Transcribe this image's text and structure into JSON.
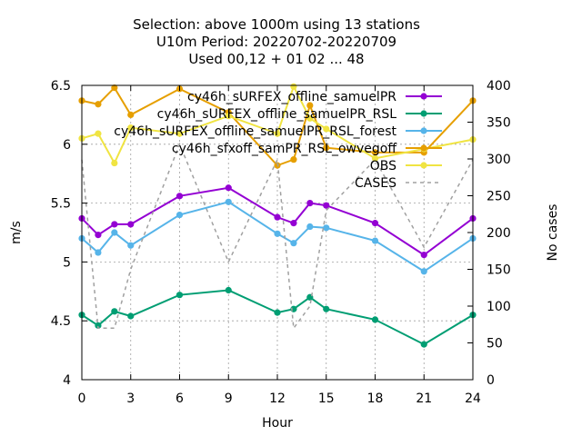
{
  "chart_data": {
    "type": "line",
    "title_lines": [
      "Selection: above 1000m using    13 stations",
      "U10m   Period: 20220702-20220709",
      "Used  00,12  + 01 02 ... 48"
    ],
    "xlabel": "Hour",
    "ylabel": "m/s",
    "y2label": "No cases",
    "xlim": [
      0,
      24
    ],
    "ylim": [
      4,
      6.5
    ],
    "y2lim": [
      0,
      400
    ],
    "xticks": [
      0,
      3,
      6,
      9,
      12,
      15,
      18,
      21,
      24
    ],
    "yticks": [
      4,
      4.5,
      5,
      5.5,
      6,
      6.5
    ],
    "y2ticks": [
      0,
      50,
      100,
      150,
      200,
      250,
      300,
      350,
      400
    ],
    "grid": true,
    "legend_position": "top-right",
    "series": [
      {
        "name": "cy46h_sURFEX_offline_samuelPR",
        "color": "#9400d3",
        "axis": "y",
        "x": [
          0,
          1,
          2,
          3,
          6,
          9,
          12,
          13,
          14,
          15,
          18,
          21,
          24
        ],
        "values": [
          5.37,
          5.23,
          5.32,
          5.32,
          5.56,
          5.63,
          5.38,
          5.33,
          5.5,
          5.48,
          5.33,
          5.06,
          5.37
        ]
      },
      {
        "name": "cy46h_sURFEX_offline_samuelPR_RSL",
        "color": "#009e73",
        "axis": "y",
        "x": [
          0,
          1,
          2,
          3,
          6,
          9,
          12,
          13,
          14,
          15,
          18,
          21,
          24
        ],
        "values": [
          4.55,
          4.46,
          4.58,
          4.54,
          4.72,
          4.76,
          4.57,
          4.6,
          4.7,
          4.6,
          4.51,
          4.3,
          4.55
        ]
      },
      {
        "name": "cy46h_sURFEX_offline_samuelPR_RSL_forest",
        "color": "#56b4e9",
        "axis": "y",
        "x": [
          0,
          1,
          2,
          3,
          6,
          9,
          12,
          13,
          14,
          15,
          18,
          21,
          24
        ],
        "values": [
          5.2,
          5.08,
          5.25,
          5.14,
          5.4,
          5.51,
          5.24,
          5.16,
          5.3,
          5.29,
          5.18,
          4.92,
          5.2
        ]
      },
      {
        "name": "cy46h_sfxoff_samPR_RSL_owvegoff",
        "color": "#e69f00",
        "axis": "y",
        "x": [
          0,
          1,
          2,
          3,
          6,
          9,
          12,
          13,
          14,
          15,
          18,
          21,
          24
        ],
        "values": [
          6.37,
          6.34,
          6.48,
          6.25,
          6.47,
          6.27,
          5.82,
          5.87,
          6.33,
          5.97,
          5.93,
          5.93,
          6.37
        ]
      },
      {
        "name": "OBS",
        "color": "#f0e442",
        "axis": "y",
        "x": [
          0,
          1,
          2,
          3,
          6,
          9,
          12,
          13,
          14,
          15,
          18,
          21,
          24
        ],
        "values": [
          6.05,
          6.09,
          5.84,
          6.14,
          6.09,
          6.24,
          6.09,
          6.49,
          6.22,
          6.13,
          5.88,
          5.96,
          6.04
        ]
      },
      {
        "name": "CASES",
        "color": "#a0a0a0",
        "axis": "y2",
        "dashed": true,
        "x": [
          0,
          1,
          2,
          3,
          6,
          9,
          12,
          13,
          14,
          15,
          18,
          21,
          24
        ],
        "values": [
          299,
          70,
          70,
          150,
          320,
          160,
          299,
          70,
          100,
          230,
          299,
          180,
          299
        ]
      }
    ]
  }
}
